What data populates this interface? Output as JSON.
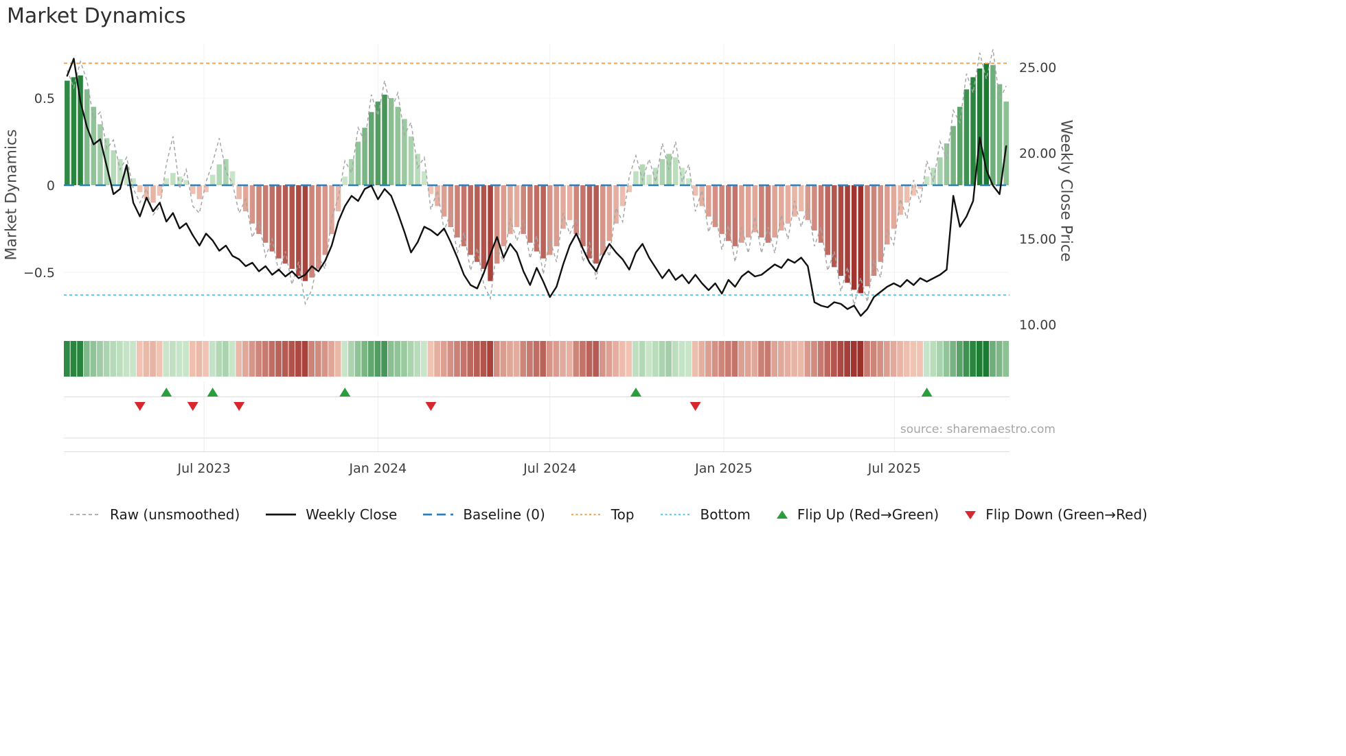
{
  "title": "Market Dynamics",
  "source": "source: sharemaestro.com",
  "axes": {
    "left_label": "Market Dynamics",
    "right_label": "Weekly Close Price"
  },
  "legend": [
    {
      "label": "Raw (unsmoothed)"
    },
    {
      "label": "Weekly Close"
    },
    {
      "label": "Baseline (0)"
    },
    {
      "label": "Top"
    },
    {
      "label": "Bottom"
    },
    {
      "label": "Flip Up (Red→Green)"
    },
    {
      "label": "Flip Down (Green→Red)"
    }
  ],
  "colors": {
    "raw": "#a6a6a6",
    "price": "#111111",
    "baseline": "#2e7ebb",
    "top": "#f4a55c",
    "bottom": "#63cdea",
    "flip_up": "#2a9d3c",
    "flip_down": "#d7282f",
    "pos_light": "#d4ecd3",
    "pos_dark": "#1a7c31",
    "neg_light": "#f6cdbc",
    "neg_dark": "#95211d"
  },
  "chart_data": {
    "type": "combo",
    "x": {
      "start_date": "2023-02-06",
      "frequency": "weekly",
      "num_weeks": 143
    },
    "x_ticks": [
      {
        "week": 20.7,
        "label": "Jul 2023"
      },
      {
        "week": 47.0,
        "label": "Jan 2024"
      },
      {
        "week": 73.0,
        "label": "Jul 2024"
      },
      {
        "week": 99.3,
        "label": "Jan 2025"
      },
      {
        "week": 125.1,
        "label": "Jul 2025"
      }
    ],
    "left_axis": {
      "label": "Market Dynamics",
      "ticks": [
        0.5,
        0,
        -0.5
      ],
      "tick_labels": [
        "0.5",
        "0",
        "−0.5"
      ],
      "range": [
        -0.78,
        0.82
      ]
    },
    "right_axis": {
      "label": "Weekly Close Price",
      "ticks": [
        25,
        20,
        15,
        10
      ],
      "tick_labels": [
        "25.00",
        "20.00",
        "15.00",
        "10.00"
      ],
      "range": [
        9.2,
        26.4
      ]
    },
    "baseline": 0,
    "top_threshold": 0.7,
    "bottom_threshold": -0.63,
    "series": [
      {
        "name": "Oscillator (smoothed, bars)",
        "type": "bar",
        "axis": "left",
        "values": [
          0.6,
          0.62,
          0.63,
          0.55,
          0.45,
          0.35,
          0.27,
          0.2,
          0.15,
          0.1,
          0.04,
          -0.04,
          -0.08,
          -0.1,
          -0.06,
          0.04,
          0.07,
          0.05,
          0.03,
          -0.05,
          -0.08,
          -0.04,
          0.06,
          0.12,
          0.15,
          0.08,
          -0.08,
          -0.15,
          -0.22,
          -0.28,
          -0.33,
          -0.38,
          -0.42,
          -0.45,
          -0.48,
          -0.52,
          -0.55,
          -0.53,
          -0.48,
          -0.4,
          -0.28,
          -0.15,
          0.05,
          0.15,
          0.25,
          0.33,
          0.42,
          0.48,
          0.52,
          0.5,
          0.45,
          0.38,
          0.28,
          0.18,
          0.08,
          -0.05,
          -0.12,
          -0.18,
          -0.24,
          -0.3,
          -0.35,
          -0.4,
          -0.44,
          -0.48,
          -0.55,
          -0.45,
          -0.35,
          -0.28,
          -0.24,
          -0.28,
          -0.33,
          -0.38,
          -0.42,
          -0.4,
          -0.35,
          -0.25,
          -0.2,
          -0.28,
          -0.35,
          -0.42,
          -0.45,
          -0.4,
          -0.32,
          -0.22,
          -0.12,
          -0.04,
          0.08,
          0.12,
          0.06,
          0.1,
          0.15,
          0.18,
          0.16,
          0.1,
          0.04,
          -0.06,
          -0.12,
          -0.18,
          -0.24,
          -0.28,
          -0.32,
          -0.35,
          -0.33,
          -0.3,
          -0.27,
          -0.3,
          -0.33,
          -0.3,
          -0.26,
          -0.22,
          -0.18,
          -0.15,
          -0.2,
          -0.26,
          -0.33,
          -0.4,
          -0.47,
          -0.52,
          -0.56,
          -0.6,
          -0.62,
          -0.58,
          -0.52,
          -0.44,
          -0.34,
          -0.25,
          -0.17,
          -0.1,
          -0.06,
          -0.02,
          0.05,
          0.1,
          0.16,
          0.24,
          0.34,
          0.45,
          0.55,
          0.62,
          0.67,
          0.7,
          0.69,
          0.58,
          0.48
        ]
      },
      {
        "name": "Raw (unsmoothed)",
        "type": "line",
        "style": "dashed",
        "axis": "left",
        "values": [
          0.66,
          0.56,
          0.71,
          0.6,
          0.38,
          0.42,
          0.21,
          0.26,
          0.09,
          0.16,
          -0.02,
          -0.1,
          -0.02,
          -0.17,
          -0.12,
          0.12,
          0.28,
          -0.02,
          0.09,
          -0.12,
          -0.16,
          0.02,
          0.13,
          0.27,
          0.08,
          0.01,
          -0.16,
          -0.08,
          -0.3,
          -0.21,
          -0.41,
          -0.31,
          -0.5,
          -0.38,
          -0.57,
          -0.44,
          -0.68,
          -0.6,
          -0.41,
          -0.48,
          -0.19,
          -0.07,
          0.14,
          0.07,
          0.33,
          0.25,
          0.52,
          0.4,
          0.6,
          0.43,
          0.53,
          0.29,
          0.36,
          0.1,
          0.16,
          -0.14,
          -0.03,
          -0.26,
          -0.16,
          -0.39,
          -0.27,
          -0.49,
          -0.36,
          -0.57,
          -0.65,
          -0.36,
          -0.44,
          -0.19,
          -0.32,
          -0.2,
          -0.42,
          -0.29,
          -0.51,
          -0.31,
          -0.44,
          -0.16,
          -0.28,
          -0.19,
          -0.44,
          -0.33,
          -0.54,
          -0.31,
          -0.41,
          -0.13,
          -0.21,
          0.05,
          0.17,
          0.03,
          0.15,
          0.02,
          0.24,
          0.09,
          0.25,
          0.02,
          0.12,
          -0.15,
          -0.03,
          -0.27,
          -0.15,
          -0.37,
          -0.23,
          -0.44,
          -0.24,
          -0.39,
          -0.18,
          -0.39,
          -0.24,
          -0.39,
          -0.17,
          -0.31,
          -0.09,
          -0.24,
          -0.11,
          -0.35,
          -0.24,
          -0.49,
          -0.38,
          -0.61,
          -0.47,
          -0.69,
          -0.53,
          -0.67,
          -0.43,
          -0.53,
          -0.25,
          -0.34,
          -0.08,
          -0.19,
          0.03,
          -0.1,
          0.14,
          0.02,
          0.25,
          0.15,
          0.43,
          0.36,
          0.64,
          0.53,
          0.76,
          0.61,
          0.78,
          0.49,
          0.57
        ]
      },
      {
        "name": "Weekly Close",
        "type": "line",
        "axis": "right",
        "values": [
          24.5,
          25.5,
          23.0,
          21.5,
          20.5,
          20.8,
          19.2,
          17.6,
          17.9,
          19.3,
          17.1,
          16.3,
          17.4,
          16.6,
          17.1,
          16.0,
          16.5,
          15.6,
          15.9,
          15.2,
          14.6,
          15.3,
          14.9,
          14.3,
          14.6,
          14.0,
          13.8,
          13.4,
          13.6,
          13.1,
          13.4,
          12.9,
          13.2,
          12.8,
          13.1,
          12.7,
          12.9,
          13.4,
          13.1,
          13.7,
          14.6,
          16.0,
          16.9,
          17.5,
          17.2,
          17.9,
          18.1,
          17.3,
          17.9,
          17.5,
          16.5,
          15.4,
          14.2,
          14.8,
          15.7,
          15.5,
          15.2,
          15.6,
          14.8,
          13.9,
          12.9,
          12.3,
          12.1,
          13.0,
          14.1,
          15.1,
          13.9,
          14.7,
          14.2,
          13.1,
          12.3,
          13.3,
          12.5,
          11.6,
          12.2,
          13.5,
          14.6,
          15.3,
          14.4,
          13.6,
          13.1,
          14.0,
          14.7,
          14.2,
          13.8,
          13.2,
          14.2,
          14.7,
          13.9,
          13.3,
          12.7,
          13.2,
          12.6,
          12.9,
          12.4,
          12.9,
          12.4,
          12.0,
          12.4,
          11.8,
          12.6,
          12.2,
          12.8,
          13.1,
          12.8,
          12.9,
          13.2,
          13.5,
          13.3,
          13.8,
          13.6,
          13.9,
          13.4,
          11.3,
          11.1,
          11.0,
          11.3,
          11.2,
          10.9,
          11.1,
          10.5,
          10.9,
          11.6,
          11.9,
          12.2,
          12.4,
          12.2,
          12.6,
          12.3,
          12.7,
          12.5,
          12.7,
          12.9,
          13.2,
          17.5,
          15.7,
          16.3,
          17.2,
          20.9,
          19.0,
          18.1,
          17.6,
          20.4
        ]
      }
    ],
    "heatmap": {
      "source": "oscillator bar values, same color scale"
    },
    "flip_up_weeks": [
      15,
      22,
      42,
      86,
      130
    ],
    "flip_down_weeks": [
      11,
      19,
      26,
      55,
      95
    ]
  }
}
